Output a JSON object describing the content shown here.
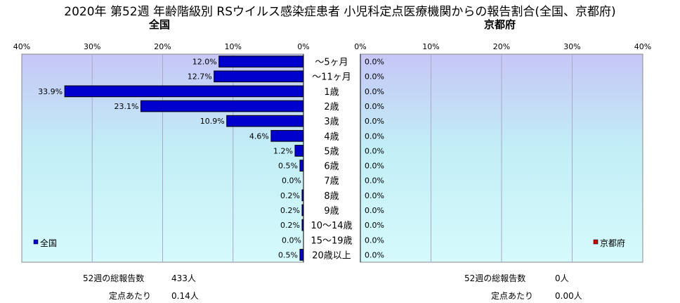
{
  "title": "2020年 第52週 年齢階級別 RSウイルス感染症患者 小児科定点医療機関からの報告割合(全国、京都府)",
  "chart_data": {
    "type": "bar",
    "orientation": "horizontal",
    "categories": [
      "～5ヶ月",
      "～11ヶ月",
      "1歳",
      "2歳",
      "3歳",
      "4歳",
      "5歳",
      "6歳",
      "7歳",
      "8歳",
      "9歳",
      "10～14歳",
      "15～19歳",
      "20歳以上"
    ],
    "xlim": [
      0,
      40
    ],
    "tick_labels": [
      "0%",
      "10%",
      "20%",
      "30%",
      "40%"
    ],
    "grid": true,
    "panels": [
      {
        "subtitle": "全国",
        "series_name": "全国",
        "legend": "bottom-left",
        "direction": "right-to-left",
        "color": "#0000cc",
        "values": [
          12.0,
          12.7,
          33.9,
          23.1,
          10.9,
          4.6,
          1.2,
          0.5,
          0.0,
          0.2,
          0.2,
          0.2,
          0.0,
          0.5
        ],
        "labels": [
          "12.0%",
          "12.7%",
          "33.9%",
          "23.1%",
          "10.9%",
          "4.6%",
          "1.2%",
          "0.5%",
          "0.0%",
          "0.2%",
          "0.2%",
          "0.2%",
          "0.0%",
          "0.5%"
        ],
        "footer": {
          "total_label": "52週の総報告数",
          "total_value": "433人",
          "per_label": "定点あたり",
          "per_value": "0.14人"
        }
      },
      {
        "subtitle": "京都府",
        "series_name": "京都府",
        "legend": "bottom-right",
        "direction": "left-to-right",
        "color": "#cc0000",
        "values": [
          0,
          0,
          0,
          0,
          0,
          0,
          0,
          0,
          0,
          0,
          0,
          0,
          0,
          0
        ],
        "labels": [
          "0.0%",
          "0.0%",
          "0.0%",
          "0.0%",
          "0.0%",
          "0.0%",
          "0.0%",
          "0.0%",
          "0.0%",
          "0.0%",
          "0.0%",
          "0.0%",
          "0.0%",
          "0.0%"
        ],
        "footer": {
          "total_label": "52週の総報告数",
          "total_value": "0人",
          "per_label": "定点あたり",
          "per_value": "0.00人"
        }
      }
    ]
  }
}
